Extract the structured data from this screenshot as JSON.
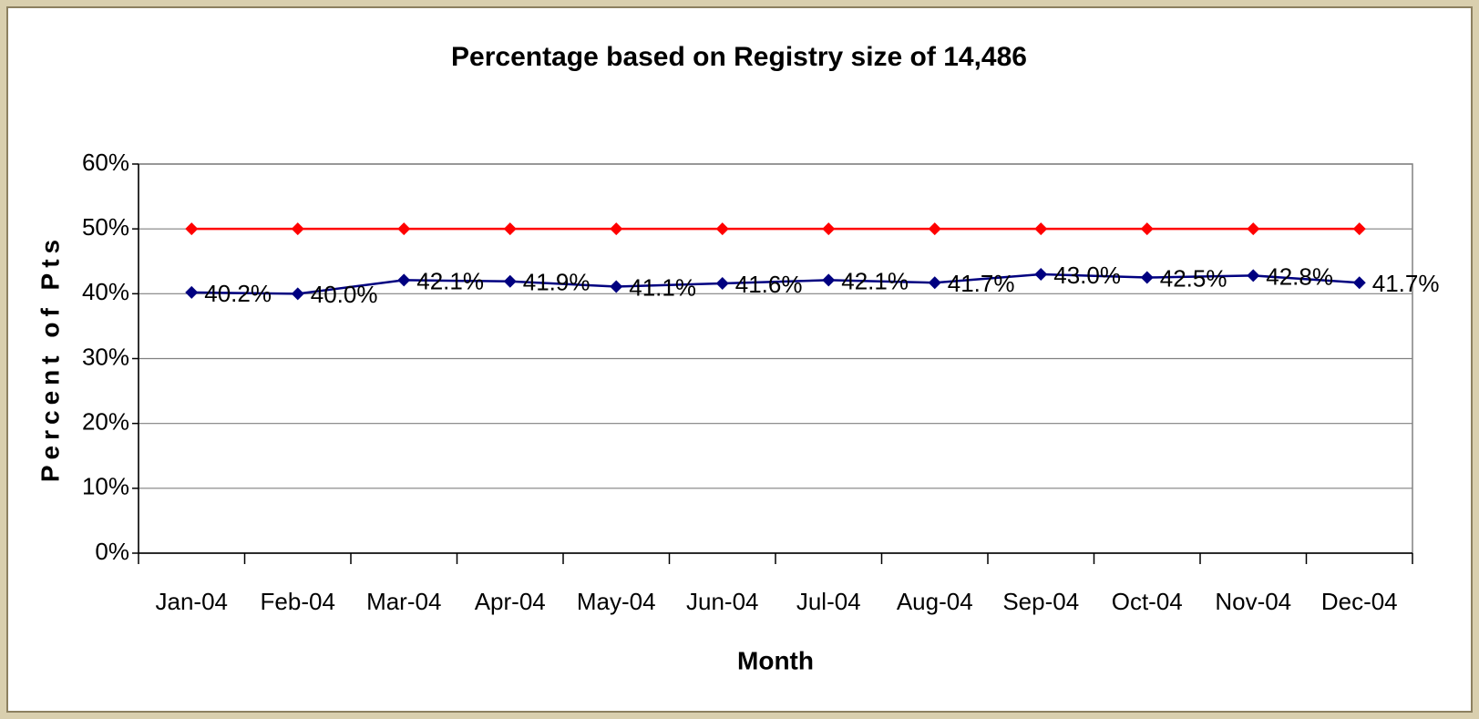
{
  "chart_data": {
    "type": "line",
    "title": "Percentage based on Registry size of 14,486",
    "x_label": "Month",
    "y_label": "Percent of Pts",
    "categories": [
      "Jan-04",
      "Feb-04",
      "Mar-04",
      "Apr-04",
      "May-04",
      "Jun-04",
      "Jul-04",
      "Aug-04",
      "Sep-04",
      "Oct-04",
      "Nov-04",
      "Dec-04"
    ],
    "series": [
      {
        "color": "#ff0000",
        "values": [
          50,
          50,
          50,
          50,
          50,
          50,
          50,
          50,
          50,
          50,
          50,
          50
        ]
      },
      {
        "color": "#000080",
        "values": [
          40.2,
          40.0,
          42.1,
          41.9,
          41.1,
          41.6,
          42.1,
          41.7,
          43.0,
          42.5,
          42.8,
          41.7
        ],
        "value_labels": [
          "40.2%",
          "40.0%",
          "42.1%",
          "41.9%",
          "41.1%",
          "41.6%",
          "42.1%",
          "41.7%",
          "43.0%",
          "42.5%",
          "42.8%",
          "41.7%"
        ]
      }
    ],
    "ylim": [
      0,
      60
    ],
    "yticks": [
      {
        "value": 0,
        "label": "0%"
      },
      {
        "value": 10,
        "label": "10%"
      },
      {
        "value": 20,
        "label": "20%"
      },
      {
        "value": 30,
        "label": "30%"
      },
      {
        "value": 40,
        "label": "40%"
      },
      {
        "value": 50,
        "label": "50%"
      },
      {
        "value": 60,
        "label": "60%"
      }
    ],
    "grid": true
  }
}
